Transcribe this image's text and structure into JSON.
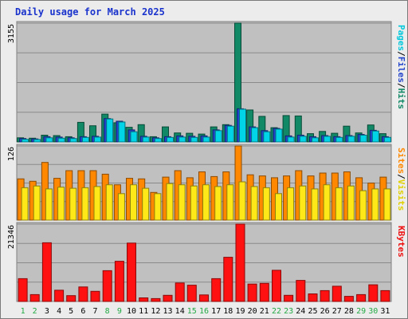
{
  "chart_data": {
    "type": "bar",
    "title": "Daily usage for March 2025",
    "categories": [
      "1",
      "2",
      "3",
      "4",
      "5",
      "6",
      "7",
      "8",
      "9",
      "10",
      "11",
      "12",
      "13",
      "14",
      "15",
      "16",
      "17",
      "18",
      "19",
      "20",
      "21",
      "22",
      "23",
      "24",
      "25",
      "26",
      "27",
      "28",
      "29",
      "30",
      "31"
    ],
    "weekend_days": [
      "1",
      "2",
      "8",
      "9",
      "15",
      "16",
      "22",
      "23",
      "29",
      "30"
    ],
    "panels": [
      {
        "name": "hits-files-pages",
        "ymax_label": "3155",
        "ylim": [
          0,
          3155
        ],
        "legend": [
          "Pages",
          "/",
          "Files",
          "/",
          "Hits"
        ],
        "series": [
          {
            "name": "Pages",
            "color": "#00d4e6",
            "values": [
              70,
              65,
              110,
              100,
              90,
              120,
              130,
              610,
              530,
              270,
              130,
              90,
              120,
              130,
              120,
              130,
              300,
              420,
              870,
              380,
              270,
              340,
              130,
              150,
              110,
              150,
              120,
              150,
              180,
              290,
              120
            ]
          },
          {
            "name": "Files",
            "color": "#2244cc",
            "values": [
              90,
              80,
              140,
              130,
              110,
              140,
              150,
              620,
              550,
              320,
              150,
              110,
              140,
              160,
              150,
              160,
              320,
              440,
              880,
              400,
              300,
              360,
              160,
              180,
              140,
              170,
              140,
              170,
              200,
              310,
              140
            ]
          },
          {
            "name": "Hits",
            "color": "#118866",
            "values": [
              110,
              100,
              180,
              170,
              140,
              520,
              430,
              740,
              510,
              390,
              460,
              140,
              400,
              240,
              230,
              210,
              400,
              460,
              3155,
              850,
              680,
              380,
              700,
              690,
              220,
              280,
              230,
              420,
              240,
              450,
              220
            ]
          }
        ]
      },
      {
        "name": "visits-sites",
        "ymax_label": "126",
        "ylim": [
          0,
          126
        ],
        "legend": [
          "Sites",
          "/",
          "Visits"
        ],
        "series": [
          {
            "name": "Sites",
            "color": "#ffe818",
            "values": [
              55,
              58,
              53,
              56,
              54,
              55,
              57,
              60,
              45,
              60,
              54,
              45,
              62,
              60,
              58,
              60,
              57,
              60,
              65,
              57,
              55,
              45,
              55,
              58,
              53,
              60,
              55,
              58,
              50,
              53,
              53
            ]
          },
          {
            "name": "Visits",
            "color": "#ff8800",
            "values": [
              70,
              66,
              98,
              71,
              84,
              84,
              84,
              78,
              60,
              71,
              70,
              47,
              73,
              84,
              72,
              82,
              74,
              82,
              126,
              77,
              75,
              72,
              75,
              84,
              75,
              80,
              80,
              82,
              72,
              63,
              73
            ]
          }
        ]
      },
      {
        "name": "kbytes",
        "ymax_label": "21346",
        "ylim": [
          0,
          21346
        ],
        "legend": [
          "KBytes"
        ],
        "series": [
          {
            "name": "KBytes",
            "color": "#ff1111",
            "values": [
              6300,
              1900,
              16200,
              3100,
              1600,
              4000,
              2800,
              8500,
              11100,
              16100,
              1000,
              800,
              1700,
              5100,
              4500,
              1800,
              6300,
              12200,
              21346,
              4800,
              5000,
              8600,
              1700,
              5800,
              2100,
              3000,
              4200,
              1400,
              1900,
              4600,
              3000
            ]
          }
        ]
      }
    ]
  }
}
